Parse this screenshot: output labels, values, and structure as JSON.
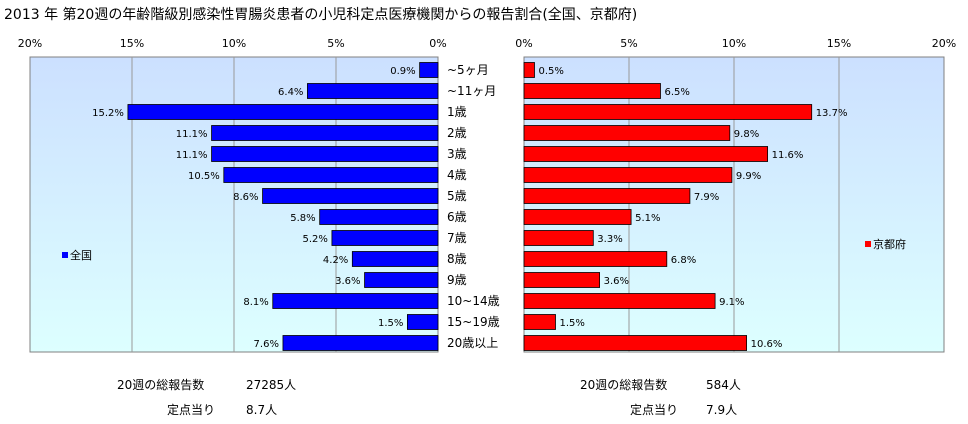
{
  "chart_data": {
    "type": "bar",
    "title": "2013 年 第20週の年齢階級別感染性胃腸炎患者の小児科定点医療機関からの報告割合(全国、京都府)",
    "categories": [
      "~5ヶ月",
      "~11ヶ月",
      "1歳",
      "2歳",
      "3歳",
      "4歳",
      "5歳",
      "6歳",
      "7歳",
      "8歳",
      "9歳",
      "10~14歳",
      "15~19歳",
      "20歳以上"
    ],
    "series": [
      {
        "name": "全国",
        "color": "#0000FF",
        "values": [
          0.9,
          6.4,
          15.2,
          11.1,
          11.1,
          10.5,
          8.6,
          5.8,
          5.2,
          4.2,
          3.6,
          8.1,
          1.5,
          7.6
        ],
        "value_labels": [
          "0.9%",
          "6.4%",
          "15.2%",
          "11.1%",
          "11.1%",
          "10.5%",
          "8.6%",
          "5.8%",
          "5.2%",
          "4.2%",
          "3.6%",
          "8.1%",
          "1.5%",
          "7.6%"
        ]
      },
      {
        "name": "京都府",
        "color": "#FF0000",
        "values": [
          0.5,
          6.5,
          13.7,
          9.8,
          11.6,
          9.9,
          7.9,
          5.1,
          3.3,
          6.8,
          3.6,
          9.1,
          1.5,
          10.6
        ],
        "value_labels": [
          "0.5%",
          "6.5%",
          "13.7%",
          "9.8%",
          "11.6%",
          "9.9%",
          "7.9%",
          "5.1%",
          "3.3%",
          "6.8%",
          "3.6%",
          "9.1%",
          "1.5%",
          "10.6%"
        ]
      }
    ],
    "xlim": [
      0,
      20
    ],
    "left_ticks": [
      "20%",
      "15%",
      "10%",
      "5%",
      "0%"
    ],
    "right_ticks": [
      "0%",
      "5%",
      "10%",
      "15%",
      "20%"
    ],
    "grid": true,
    "legend_position": "left / right middle",
    "colors": {
      "plot_bg_top": "#CCE0FF",
      "plot_bg_bottom": "#DDFFFF"
    }
  },
  "footer": {
    "national": {
      "total_label": "20週の総報告数",
      "total_value": "27285人",
      "per_label": "定点当り",
      "per_value": "8.7人"
    },
    "kyoto": {
      "total_label": "20週の総報告数",
      "total_value": "584人",
      "per_label": "定点当り",
      "per_value": "7.9人"
    }
  }
}
